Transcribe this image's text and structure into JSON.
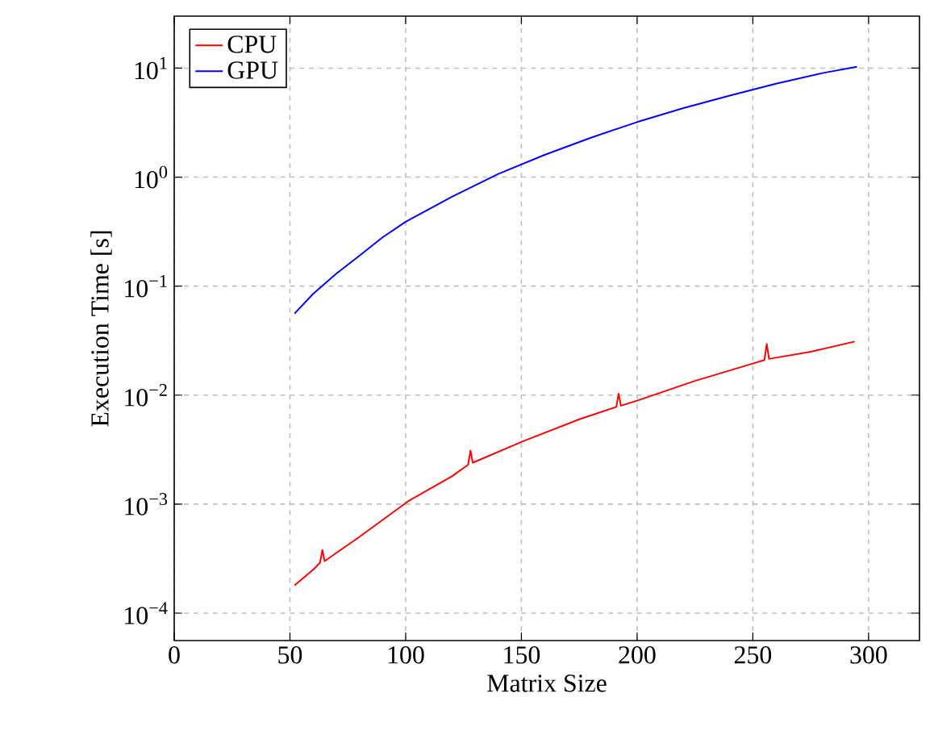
{
  "chart_data": {
    "type": "line",
    "xlabel": "Matrix Size",
    "ylabel": "Execution Time [s]",
    "xlim": [
      0,
      322
    ],
    "xticks": [
      0,
      50,
      100,
      150,
      200,
      250,
      300
    ],
    "ylim": [
      5.6e-05,
      30
    ],
    "yticks": [
      {
        "value": 0.0001,
        "label": "10$^{−4}$"
      },
      {
        "value": 0.001,
        "label": "10$^{−3}$"
      },
      {
        "value": 0.01,
        "label": "10$^{−2}$"
      },
      {
        "value": 0.1,
        "label": "10$^{−1}$"
      },
      {
        "value": 1,
        "label": "10$^{0}$"
      },
      {
        "value": 10,
        "label": "10$^{1}$"
      }
    ],
    "log": "y",
    "grid": true,
    "legend": "top left",
    "marker": "none",
    "line_style": "solid",
    "series": [
      {
        "name": "CPU",
        "color": "#ff0000",
        "x": [
          52,
          60,
          63,
          64,
          65,
          80,
          101,
          120,
          127,
          128,
          129,
          151,
          175,
          191,
          192,
          193,
          200,
          225,
          250,
          255,
          256,
          257,
          275,
          294
        ],
        "values": [
          0.00018,
          0.00025,
          0.00029,
          0.00038,
          0.0003,
          0.0005,
          0.00106,
          0.0018,
          0.0023,
          0.0031,
          0.0024,
          0.0038,
          0.006,
          0.0078,
          0.0103,
          0.008,
          0.0089,
          0.0135,
          0.0195,
          0.021,
          0.0295,
          0.0215,
          0.025,
          0.031
        ]
      },
      {
        "name": "GPU",
        "color": "#0000ff",
        "x": [
          52,
          60,
          70,
          80,
          90,
          100,
          120,
          140,
          160,
          180,
          200,
          220,
          240,
          260,
          280,
          295
        ],
        "values": [
          0.056,
          0.085,
          0.13,
          0.19,
          0.28,
          0.39,
          0.66,
          1.07,
          1.6,
          2.3,
          3.2,
          4.3,
          5.6,
          7.2,
          9.0,
          10.3
        ]
      }
    ]
  }
}
